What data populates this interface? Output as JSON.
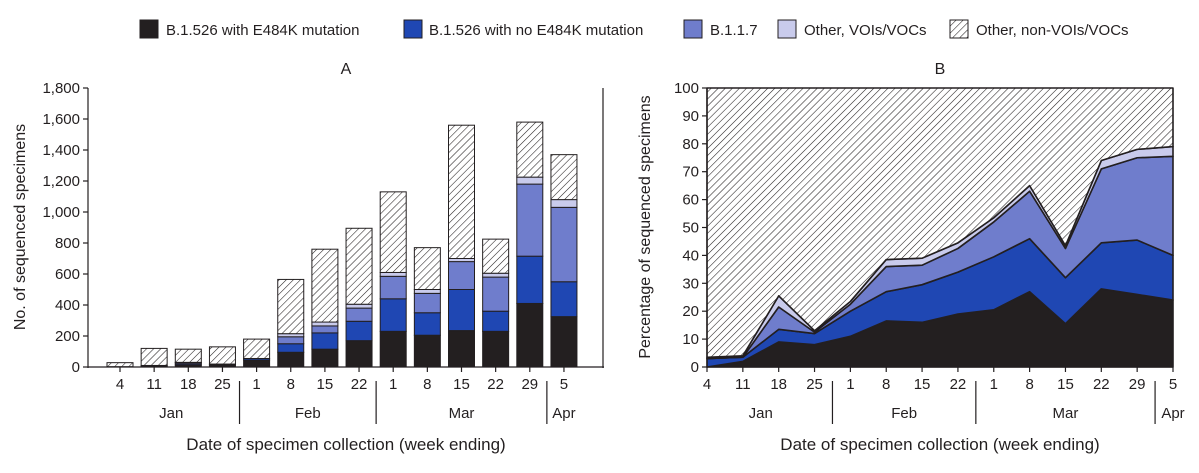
{
  "legend": {
    "items": [
      {
        "label": "B.1.526 with E484K mutation",
        "color": "#231f20",
        "pattern": false
      },
      {
        "label": "B.1.526 with no E484K mutation",
        "color": "#1f47b3",
        "pattern": false
      },
      {
        "label": "B.1.1.7",
        "color": "#6f7dcc",
        "pattern": false
      },
      {
        "label": "Other, VOIs/VOCs",
        "color": "#c9cbec",
        "pattern": false
      },
      {
        "label": "Other, non-VOIs/VOCs",
        "color": "#ffffff",
        "pattern": true
      }
    ]
  },
  "chart_data": [
    {
      "panel": "A",
      "type": "bar",
      "stacked": true,
      "title": "A",
      "xlabel": "Date of specimen collection (week ending)",
      "ylabel": "No. of sequenced specimens",
      "ylim": [
        0,
        1800
      ],
      "yticks": [
        "0",
        "200",
        "400",
        "600",
        "800",
        "1,000",
        "1,200",
        "1,400",
        "1,600",
        "1,800"
      ],
      "categories": [
        "4",
        "11",
        "18",
        "25",
        "1",
        "8",
        "15",
        "22",
        "1",
        "8",
        "15",
        "22",
        "29",
        "5"
      ],
      "months": [
        {
          "label": "Jan",
          "start": 0,
          "end": 3
        },
        {
          "label": "Feb",
          "start": 4,
          "end": 7
        },
        {
          "label": "Mar",
          "start": 8,
          "end": 12
        },
        {
          "label": "Apr",
          "start": 13,
          "end": 13
        }
      ],
      "series": [
        {
          "name": "B.1.526 with E484K mutation",
          "values": [
            0,
            5,
            12,
            12,
            45,
            95,
            115,
            170,
            230,
            205,
            235,
            230,
            410,
            325
          ]
        },
        {
          "name": "B.1.526 with no E484K mutation",
          "values": [
            2,
            5,
            8,
            5,
            10,
            55,
            105,
            125,
            210,
            145,
            265,
            130,
            305,
            225
          ]
        },
        {
          "name": "B.1.1.7",
          "values": [
            0,
            0,
            8,
            2,
            0,
            45,
            45,
            85,
            145,
            125,
            180,
            220,
            465,
            480
          ]
        },
        {
          "name": "Other, VOIs/VOCs",
          "values": [
            0,
            0,
            2,
            0,
            0,
            20,
            25,
            25,
            25,
            25,
            20,
            25,
            45,
            50
          ]
        },
        {
          "name": "Other, non-VOIs/VOCs",
          "values": [
            26,
            110,
            85,
            111,
            125,
            350,
            470,
            490,
            520,
            270,
            860,
            220,
            355,
            290
          ]
        }
      ]
    },
    {
      "panel": "B",
      "type": "area",
      "stacked": true,
      "title": "B",
      "xlabel": "Date of specimen collection (week ending)",
      "ylabel": "Percentage of sequenced specimens",
      "ylim": [
        0,
        100
      ],
      "yticks": [
        "0",
        "10",
        "20",
        "30",
        "40",
        "50",
        "60",
        "70",
        "80",
        "90",
        "100"
      ],
      "categories": [
        "4",
        "11",
        "18",
        "25",
        "1",
        "8",
        "15",
        "22",
        "1",
        "8",
        "15",
        "22",
        "29",
        "5"
      ],
      "months": [
        {
          "label": "Jan",
          "start": 0,
          "end": 3
        },
        {
          "label": "Feb",
          "start": 4,
          "end": 7
        },
        {
          "label": "Mar",
          "start": 8,
          "end": 12
        },
        {
          "label": "Apr",
          "start": 13,
          "end": 13
        }
      ],
      "series": [
        {
          "name": "B.1.526 with E484K mutation",
          "values": [
            0,
            2,
            9,
            8,
            11,
            16.5,
            16,
            19,
            20.5,
            27,
            15.5,
            28,
            26,
            24
          ]
        },
        {
          "name": "B.1.526 with no E484K mutation",
          "values": [
            3,
            1.5,
            4.5,
            4,
            9,
            10.5,
            13.5,
            15,
            19,
            19,
            16.5,
            16.5,
            19.5,
            16
          ]
        },
        {
          "name": "B.1.1.7",
          "values": [
            0,
            0,
            8,
            0.5,
            2.5,
            9,
            7,
            8.5,
            12.5,
            17,
            10.5,
            26.5,
            29.5,
            35.5
          ]
        },
        {
          "name": "Other, VOIs/VOCs",
          "values": [
            0.5,
            0.5,
            4,
            0.5,
            1,
            2.5,
            2.5,
            2,
            1.5,
            2,
            1,
            3,
            3,
            3.5
          ]
        },
        {
          "name": "Other, non-VOIs/VOCs",
          "values": [
            96.5,
            96,
            74.5,
            87,
            76.5,
            62,
            61,
            55.5,
            46.5,
            35,
            56.5,
            26,
            22,
            21
          ]
        }
      ]
    }
  ]
}
